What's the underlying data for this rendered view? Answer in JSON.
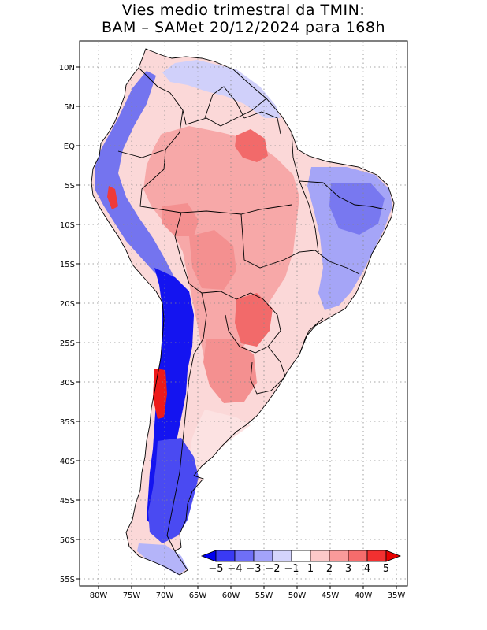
{
  "title": {
    "line1": "Vies medio trimestral da TMIN:",
    "line2": "BAM – SAMet 20/12/2024  para 168h"
  },
  "map": {
    "region": "South America",
    "lon_range": [
      -85,
      -34.5
    ],
    "lat_range": [
      -55.5,
      13
    ],
    "lat_ticks": [
      "10N",
      "5N",
      "EQ",
      "5S",
      "10S",
      "15S",
      "20S",
      "25S",
      "30S",
      "35S",
      "40S",
      "45S",
      "50S",
      "55S"
    ],
    "lon_ticks": [
      "80W",
      "75W",
      "70W",
      "65W",
      "60W",
      "55W",
      "50W",
      "45W",
      "40W",
      "35W"
    ],
    "grid": "dotted",
    "colorbar_labels": [
      "−5",
      "−4",
      "−3",
      "−2",
      "−1",
      "1",
      "2",
      "3",
      "4",
      "5"
    ],
    "colorbar_colors": [
      "#0000ee",
      "#3a3af5",
      "#6f6ff7",
      "#a3a3fa",
      "#d4d4fc",
      "#ffffff",
      "#fcc8c8",
      "#f99a9a",
      "#f66c6c",
      "#f23030",
      "#e60000"
    ],
    "colors": {
      "strong_cold": "#1010f0",
      "cold": "#7b7bf5",
      "weak_cold": "#c9c9fb",
      "weak_warm": "#fbcaca",
      "warm": "#f58a8a",
      "strong_warm": "#ee2f2f"
    }
  }
}
